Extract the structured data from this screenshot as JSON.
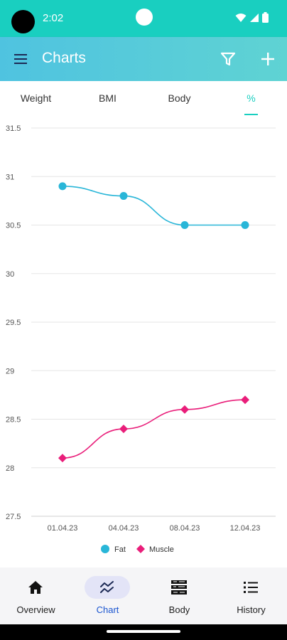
{
  "status_bar": {
    "time": "2:02"
  },
  "app_bar": {
    "title": "Charts"
  },
  "tabs": [
    {
      "label": "Weight",
      "active": false
    },
    {
      "label": "BMI",
      "active": false
    },
    {
      "label": "Body",
      "active": false
    },
    {
      "label": "%",
      "active": true
    }
  ],
  "chart_data": {
    "type": "line",
    "x": [
      "01.04.23",
      "04.04.23",
      "08.04.23",
      "12.04.23"
    ],
    "series": [
      {
        "name": "Fat",
        "values": [
          30.9,
          30.8,
          30.5,
          30.5
        ],
        "color": "#29b6d8",
        "marker": "circle"
      },
      {
        "name": "Muscle",
        "values": [
          28.1,
          28.4,
          28.6,
          28.7
        ],
        "color": "#e91e7a",
        "marker": "diamond"
      }
    ],
    "yticks": [
      "31.5",
      "31",
      "30.5",
      "30",
      "29.5",
      "29",
      "28.5",
      "28",
      "27.5"
    ],
    "ylim": [
      27.5,
      31.5
    ],
    "grid": true,
    "legend_position": "bottom"
  },
  "bottom_nav": [
    {
      "label": "Overview",
      "icon": "home-icon",
      "active": false
    },
    {
      "label": "Chart",
      "icon": "chart-icon",
      "active": true
    },
    {
      "label": "Body",
      "icon": "body-icon",
      "active": false
    },
    {
      "label": "History",
      "icon": "list-icon",
      "active": false
    }
  ],
  "colors": {
    "accent": "#19cfc0",
    "app_bar": "#4fc3e0",
    "nav_active": "#1a55d0"
  }
}
